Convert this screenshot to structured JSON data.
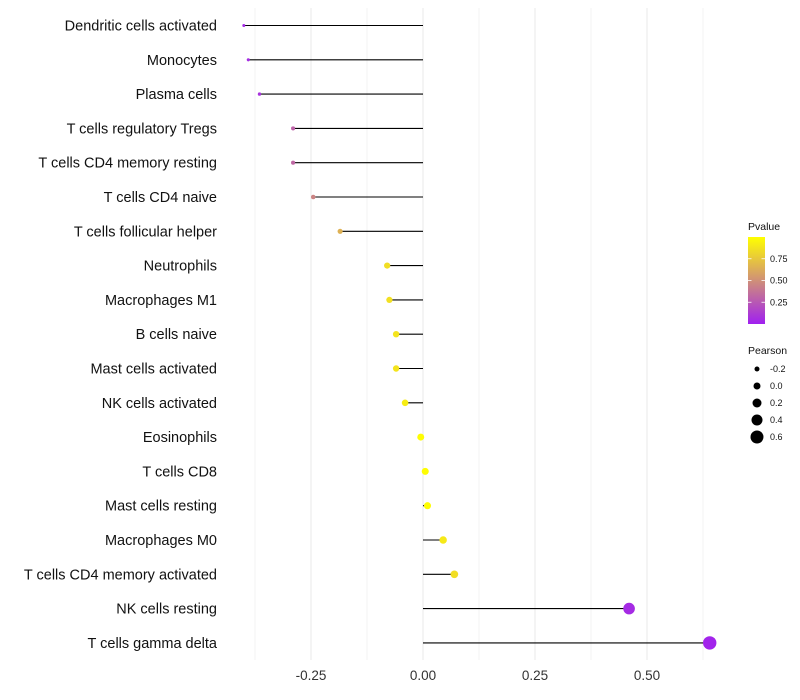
{
  "chart_data": {
    "type": "lollipop",
    "x_axis": {
      "range": [
        -0.42,
        0.7
      ],
      "ticks": [
        -0.25,
        0.0,
        0.25,
        0.5
      ],
      "tick_labels": [
        "-0.25",
        "0.00",
        "0.25",
        "0.50"
      ],
      "grid": true
    },
    "categories": [
      "Dendritic cells activated",
      "Monocytes",
      "Plasma cells",
      "T cells regulatory  Tregs",
      "T cells CD4 memory resting",
      "T cells CD4 naive",
      "T cells follicular helper",
      "Neutrophils",
      "Macrophages M1",
      "B cells naive",
      "Mast cells activated",
      "NK cells activated",
      "Eosinophils",
      "T cells CD8",
      "Mast cells resting",
      "Macrophages M0",
      "T cells CD4 memory activated",
      "NK cells resting",
      "T cells gamma delta"
    ],
    "values": [
      -0.4,
      -0.39,
      -0.365,
      -0.29,
      -0.29,
      -0.245,
      -0.185,
      -0.08,
      -0.075,
      -0.06,
      -0.06,
      -0.04,
      -0.005,
      0.005,
      0.01,
      0.045,
      0.07,
      0.46,
      0.64
    ],
    "pvalues": [
      0.04,
      0.05,
      0.08,
      0.3,
      0.32,
      0.45,
      0.65,
      0.85,
      0.86,
      0.88,
      0.88,
      0.92,
      0.99,
      0.99,
      0.99,
      0.9,
      0.85,
      0.05,
      0.02
    ],
    "legend": {
      "color": {
        "title": "Pvalue",
        "ticks": [
          0.25,
          0.5,
          0.75
        ],
        "tick_labels": [
          "0.25",
          "0.50",
          "0.75"
        ],
        "range": [
          0.0,
          1.0
        ],
        "low_color": "#a020f0",
        "high_color": "#ffff00"
      },
      "size": {
        "title": "Pearson",
        "values": [
          -0.2,
          0.0,
          0.2,
          0.4,
          0.6
        ],
        "labels": [
          "-0.2",
          "0.0",
          "0.2",
          "0.4",
          "0.6"
        ],
        "color": "#000000"
      },
      "placement": "right"
    },
    "stem_color": "#000000",
    "grid_color": "#ebebeb"
  }
}
